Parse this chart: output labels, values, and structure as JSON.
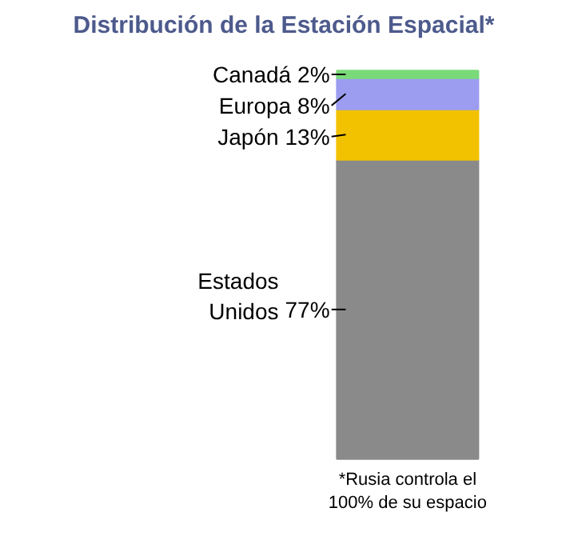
{
  "chart_data": {
    "type": "bar",
    "title": "Distribución de la Estación Espacial*",
    "stacked": true,
    "categories": [
      null
    ],
    "legend": false,
    "series": [
      {
        "name": "Estados Unidos",
        "color": "#8a8a8a",
        "values": [
          77
        ],
        "value_labels": [
          "77%"
        ]
      },
      {
        "name": "Japón",
        "color": "#f2c200",
        "values": [
          13
        ],
        "value_labels": [
          "13%"
        ]
      },
      {
        "name": "Europa",
        "color": "#9c9cf0",
        "values": [
          8
        ],
        "value_labels": [
          "8%"
        ]
      },
      {
        "name": "Canadá",
        "color": "#7ada7a",
        "values": [
          2
        ],
        "value_labels": [
          "2%"
        ]
      }
    ],
    "annotations": [
      "*Rusia controla el 100% de su espacio"
    ]
  }
}
